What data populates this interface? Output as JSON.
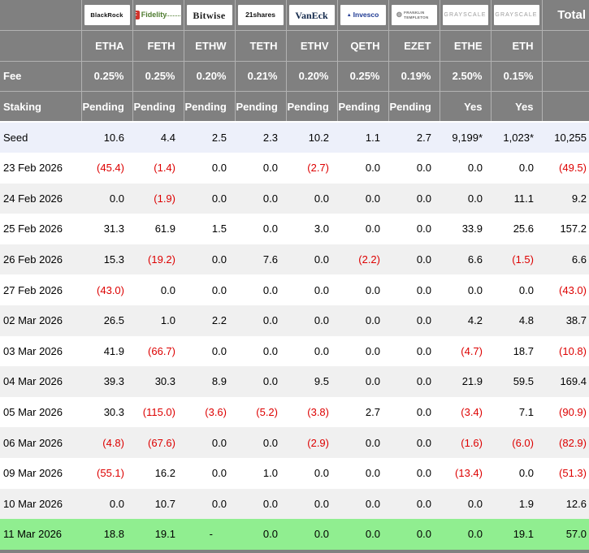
{
  "chart_data": {
    "type": "table",
    "description": "Ethereum ETF daily flow table (US$m) by issuer",
    "total_label": "Total",
    "labels": {
      "fee": "Fee",
      "staking": "Staking",
      "seed": "Seed"
    },
    "providers": [
      {
        "name": "BlackRock",
        "style": "blackrock",
        "ticker": "ETHA",
        "fee": "0.25%",
        "staking": "Pending"
      },
      {
        "name": "Fidelity",
        "style": "fidelity",
        "ticker": "FETH",
        "fee": "0.25%",
        "staking": "Pending"
      },
      {
        "name": "Bitwise",
        "style": "bitwise",
        "ticker": "ETHW",
        "fee": "0.20%",
        "staking": "Pending"
      },
      {
        "name": "21shares",
        "style": "21shares",
        "ticker": "TETH",
        "fee": "0.21%",
        "staking": "Pending"
      },
      {
        "name": "VanEck",
        "style": "vaneck",
        "ticker": "ETHV",
        "fee": "0.20%",
        "staking": "Pending"
      },
      {
        "name": "Invesco",
        "style": "invesco",
        "ticker": "QETH",
        "fee": "0.25%",
        "staking": "Pending"
      },
      {
        "name": "FRANKLIN TEMPLETON",
        "style": "franklin",
        "ticker": "EZET",
        "fee": "0.19%",
        "staking": "Pending"
      },
      {
        "name": "GRAYSCALE",
        "style": "grayscale",
        "ticker": "ETHE",
        "fee": "2.50%",
        "staking": "Yes"
      },
      {
        "name": "GRAYSCALE",
        "style": "grayscale",
        "ticker": "ETH",
        "fee": "0.15%",
        "staking": "Yes"
      }
    ],
    "seed_values": [
      "10.6",
      "4.4",
      "2.5",
      "2.3",
      "10.2",
      "1.1",
      "2.7",
      "9,199*",
      "1,023*"
    ],
    "seed_total": "10,255",
    "rows": [
      {
        "date": "23 Feb 2026",
        "values": [
          "(45.4)",
          "(1.4)",
          "0.0",
          "0.0",
          "(2.7)",
          "0.0",
          "0.0",
          "0.0",
          "0.0"
        ],
        "total": "(49.5)"
      },
      {
        "date": "24 Feb 2026",
        "values": [
          "0.0",
          "(1.9)",
          "0.0",
          "0.0",
          "0.0",
          "0.0",
          "0.0",
          "0.0",
          "11.1"
        ],
        "total": "9.2"
      },
      {
        "date": "25 Feb 2026",
        "values": [
          "31.3",
          "61.9",
          "1.5",
          "0.0",
          "3.0",
          "0.0",
          "0.0",
          "33.9",
          "25.6"
        ],
        "total": "157.2"
      },
      {
        "date": "26 Feb 2026",
        "values": [
          "15.3",
          "(19.2)",
          "0.0",
          "7.6",
          "0.0",
          "(2.2)",
          "0.0",
          "6.6",
          "(1.5)"
        ],
        "total": "6.6"
      },
      {
        "date": "27 Feb 2026",
        "values": [
          "(43.0)",
          "0.0",
          "0.0",
          "0.0",
          "0.0",
          "0.0",
          "0.0",
          "0.0",
          "0.0"
        ],
        "total": "(43.0)"
      },
      {
        "date": "02 Mar 2026",
        "values": [
          "26.5",
          "1.0",
          "2.2",
          "0.0",
          "0.0",
          "0.0",
          "0.0",
          "4.2",
          "4.8"
        ],
        "total": "38.7"
      },
      {
        "date": "03 Mar 2026",
        "values": [
          "41.9",
          "(66.7)",
          "0.0",
          "0.0",
          "0.0",
          "0.0",
          "0.0",
          "(4.7)",
          "18.7"
        ],
        "total": "(10.8)"
      },
      {
        "date": "04 Mar 2026",
        "values": [
          "39.3",
          "30.3",
          "8.9",
          "0.0",
          "9.5",
          "0.0",
          "0.0",
          "21.9",
          "59.5"
        ],
        "total": "169.4"
      },
      {
        "date": "05 Mar 2026",
        "values": [
          "30.3",
          "(115.0)",
          "(3.6)",
          "(5.2)",
          "(3.8)",
          "2.7",
          "0.0",
          "(3.4)",
          "7.1"
        ],
        "total": "(90.9)"
      },
      {
        "date": "06 Mar 2026",
        "values": [
          "(4.8)",
          "(67.6)",
          "0.0",
          "0.0",
          "(2.9)",
          "0.0",
          "0.0",
          "(1.6)",
          "(6.0)"
        ],
        "total": "(82.9)"
      },
      {
        "date": "09 Mar 2026",
        "values": [
          "(55.1)",
          "16.2",
          "0.0",
          "1.0",
          "0.0",
          "0.0",
          "0.0",
          "(13.4)",
          "0.0"
        ],
        "total": "(51.3)"
      },
      {
        "date": "10 Mar 2026",
        "values": [
          "0.0",
          "10.7",
          "0.0",
          "0.0",
          "0.0",
          "0.0",
          "0.0",
          "0.0",
          "1.9"
        ],
        "total": "12.6"
      },
      {
        "date": "11 Mar 2026",
        "values": [
          "18.8",
          "19.1",
          "-",
          "0.0",
          "0.0",
          "0.0",
          "0.0",
          "0.0",
          "19.1"
        ],
        "total": "57.0"
      }
    ],
    "colors": {
      "header_bg": "#808080",
      "header_text": "#ffffff",
      "negative_text": "#dd0000",
      "seed_row_bg": "#edf0fa",
      "alt_row_bg": "#f0f0f0",
      "latest_row_bg": "#90ee90"
    },
    "layout_hints": {
      "negative_format": "parentheses",
      "latest_row_highlighted": true
    }
  }
}
